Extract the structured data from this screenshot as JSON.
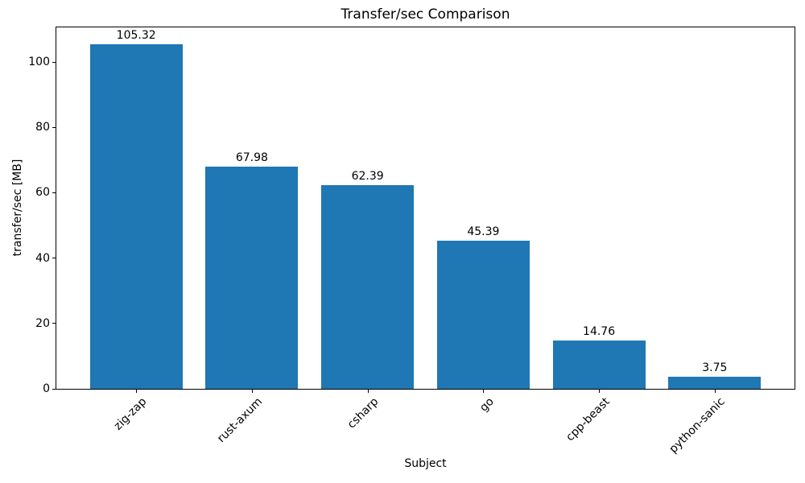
{
  "figure": {
    "background": "#ffffff",
    "text_color": "#000000",
    "spine_color": "#000000"
  },
  "chart_data": {
    "type": "bar",
    "title": "Transfer/sec Comparison",
    "xlabel": "Subject",
    "ylabel": "transfer/sec [MB]",
    "categories": [
      "zig-zap",
      "rust-axum",
      "csharp",
      "go",
      "cpp-beast",
      "python-sanic"
    ],
    "values": [
      105.32,
      67.98,
      62.39,
      45.39,
      14.76,
      3.75
    ],
    "value_labels": [
      "105.32",
      "67.98",
      "62.39",
      "45.39",
      "14.76",
      "3.75"
    ],
    "bar_color": "#1f77b4",
    "yticks": [
      0,
      20,
      40,
      60,
      80,
      100
    ],
    "ylim": [
      0,
      110.6
    ],
    "grid": false,
    "legend": null,
    "x_tick_rotation": 45
  }
}
